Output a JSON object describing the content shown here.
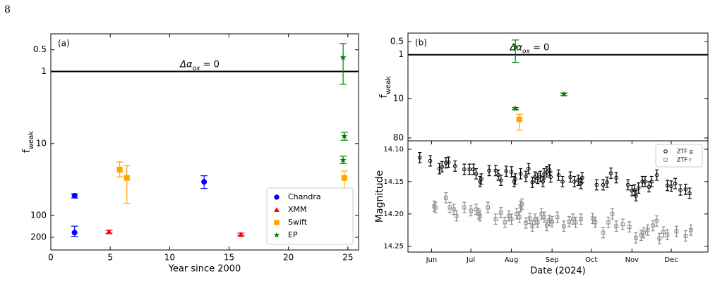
{
  "page_number": "8",
  "chart_data": [
    {
      "type": "scatter",
      "panel_label": "(a)",
      "xlabel": "Year since 2000",
      "ylabel": "f",
      "ylabel_sub": "weak",
      "annotation": "Δα",
      "annotation_sub": "ox",
      "annotation_rest": " = 0",
      "hline": 1,
      "xlim": [
        0,
        25.9
      ],
      "xticks": [
        0,
        5,
        10,
        15,
        20,
        25
      ],
      "ylim": [
        0.3,
        300
      ],
      "yticks": [
        0.5,
        1,
        10,
        100,
        200
      ],
      "yscale": "log",
      "yinvert": true,
      "legend": "lower right",
      "series": [
        {
          "name": "Chandra",
          "color": "#0000ff",
          "marker": "circle",
          "x": [
            2,
            2,
            12.9
          ],
          "values": [
            53,
            172,
            34
          ],
          "lower": [
            50,
            140,
            28
          ],
          "upper": [
            57,
            195,
            42
          ]
        },
        {
          "name": "XMM",
          "color": "#ff0000",
          "marker": "triangle",
          "x": [
            4.9,
            16
          ],
          "values": [
            168,
            183
          ],
          "lower": [
            160,
            175
          ],
          "upper": [
            176,
            190
          ]
        },
        {
          "name": "Swift",
          "color": "#ffa500",
          "marker": "square",
          "x": [
            5.8,
            6.4,
            24.7
          ],
          "values": [
            23,
            30,
            30
          ],
          "lower": [
            18,
            20,
            24
          ],
          "upper": [
            29,
            68,
            53
          ]
        },
        {
          "name": "EP",
          "color": "#008000",
          "marker": "star",
          "x": [
            24.6,
            24.7,
            24.6
          ],
          "values": [
            0.64,
            7.9,
            17
          ],
          "lower": [
            0.41,
            7,
            15
          ],
          "upper": [
            1.5,
            9,
            19
          ]
        }
      ]
    },
    {
      "type": "scatter",
      "panel_label": "(b)",
      "ylabel": "f",
      "ylabel_sub": "weak",
      "annotation": "Δα",
      "annotation_sub": "ox",
      "annotation_rest": " = 0",
      "hline": 1,
      "xlim": [
        "2024-05-14",
        "2024-12-29"
      ],
      "ylim": [
        0.32,
        93
      ],
      "yticks": [
        0.5,
        1,
        10,
        80
      ],
      "yscale": "log",
      "yinvert": true,
      "series": [
        {
          "color": "#008000",
          "marker": "star",
          "x": [
            "2024-08-04",
            "2024-08-04",
            "2024-09-10"
          ],
          "values": [
            0.66,
            17,
            8
          ],
          "lower": [
            0.46,
            16,
            7.5
          ],
          "upper": [
            1.5,
            18,
            8.6
          ]
        },
        {
          "color": "#ffa500",
          "marker": "square",
          "x": [
            "2024-08-07"
          ],
          "values": [
            30
          ],
          "lower": [
            23
          ],
          "upper": [
            53
          ]
        }
      ]
    },
    {
      "type": "scatter",
      "xlabel": "Date (2024)",
      "ylabel": "Magnitude",
      "xlim": [
        "2024-05-14",
        "2024-12-29"
      ],
      "xticks": [
        {
          "value": "2024-06-01",
          "label": "Jun"
        },
        {
          "value": "2024-07-01",
          "label": "Jul"
        },
        {
          "value": "2024-08-01",
          "label": "Aug"
        },
        {
          "value": "2024-09-01",
          "label": "Sep"
        },
        {
          "value": "2024-10-01",
          "label": "Oct"
        },
        {
          "value": "2024-11-01",
          "label": "Nov"
        },
        {
          "value": "2024-12-01",
          "label": "Dec"
        }
      ],
      "ylim": [
        14.087,
        14.259
      ],
      "yticks": [
        {
          "value": 14.1,
          "label": "14.10"
        },
        {
          "value": 14.15,
          "label": "14.15"
        },
        {
          "value": 14.2,
          "label": "14.20"
        },
        {
          "value": 14.25,
          "label": "14.25"
        }
      ],
      "yinvert": true,
      "legend": "upper right",
      "series": [
        {
          "name": "ZTF g",
          "color": "#000000",
          "marker": "circle",
          "filled": false,
          "error": 0.008,
          "x": [
            "2024-05-23",
            "2024-05-31",
            "2024-06-07",
            "2024-06-09",
            "2024-06-12",
            "2024-06-14",
            "2024-06-19",
            "2024-06-26",
            "2024-06-30",
            "2024-07-03",
            "2024-07-05",
            "2024-07-08",
            "2024-07-09",
            "2024-07-15",
            "2024-07-20",
            "2024-07-22",
            "2024-07-24",
            "2024-07-28",
            "2024-08-01",
            "2024-08-03",
            "2024-08-04",
            "2024-08-08",
            "2024-08-12",
            "2024-08-14",
            "2024-08-17",
            "2024-08-19",
            "2024-08-21",
            "2024-08-23",
            "2024-08-25",
            "2024-08-26",
            "2024-08-28",
            "2024-08-30",
            "2024-08-31",
            "2024-09-06",
            "2024-09-09",
            "2024-09-15",
            "2024-09-18",
            "2024-09-21",
            "2024-09-23",
            "2024-09-24",
            "2024-10-05",
            "2024-10-10",
            "2024-10-13",
            "2024-10-16",
            "2024-10-20",
            "2024-10-29",
            "2024-11-01",
            "2024-11-03",
            "2024-11-04",
            "2024-11-06",
            "2024-11-09",
            "2024-11-11",
            "2024-11-14",
            "2024-11-16",
            "2024-11-20",
            "2024-11-28",
            "2024-12-01",
            "2024-12-04",
            "2024-12-08",
            "2024-12-12",
            "2024-12-15"
          ],
          "values": [
            14.113,
            14.118,
            14.13,
            14.127,
            14.121,
            14.12,
            14.126,
            14.131,
            14.131,
            14.131,
            14.138,
            14.15,
            14.146,
            14.133,
            14.133,
            14.14,
            14.148,
            14.134,
            14.135,
            14.15,
            14.146,
            14.138,
            14.142,
            14.13,
            14.151,
            14.143,
            14.145,
            14.142,
            14.15,
            14.138,
            14.135,
            14.132,
            14.143,
            14.14,
            14.15,
            14.143,
            14.15,
            14.148,
            14.153,
            14.144,
            14.155,
            14.155,
            14.151,
            14.137,
            14.144,
            14.155,
            14.164,
            14.163,
            14.172,
            14.16,
            14.15,
            14.15,
            14.158,
            14.15,
            14.14,
            14.156,
            14.157,
            14.153,
            14.163,
            14.162,
            14.168
          ]
        },
        {
          "name": "ZTF r",
          "color": "#8c8c8c",
          "marker": "square",
          "filled": false,
          "error": 0.008,
          "x": [
            "2024-06-03",
            "2024-06-04",
            "2024-06-12",
            "2024-06-15",
            "2024-06-18",
            "2024-06-20",
            "2024-06-26",
            "2024-07-01",
            "2024-07-05",
            "2024-07-07",
            "2024-07-08",
            "2024-07-14",
            "2024-07-20",
            "2024-07-24",
            "2024-07-27",
            "2024-07-30",
            "2024-08-01",
            "2024-08-05",
            "2024-08-07",
            "2024-08-08",
            "2024-08-09",
            "2024-08-12",
            "2024-08-15",
            "2024-08-17",
            "2024-08-19",
            "2024-08-21",
            "2024-08-24",
            "2024-08-26",
            "2024-08-28",
            "2024-08-30",
            "2024-09-01",
            "2024-09-05",
            "2024-09-10",
            "2024-09-14",
            "2024-09-17",
            "2024-09-19",
            "2024-09-23",
            "2024-10-02",
            "2024-10-04",
            "2024-10-10",
            "2024-10-14",
            "2024-10-17",
            "2024-10-20",
            "2024-10-25",
            "2024-10-30",
            "2024-11-04",
            "2024-11-08",
            "2024-11-10",
            "2024-11-13",
            "2024-11-17",
            "2024-11-20",
            "2024-11-22",
            "2024-11-25",
            "2024-11-28",
            "2024-12-05",
            "2024-12-12",
            "2024-12-16"
          ],
          "values": [
            14.188,
            14.19,
            14.175,
            14.19,
            14.193,
            14.203,
            14.19,
            14.195,
            14.193,
            14.2,
            14.203,
            14.19,
            14.208,
            14.198,
            14.213,
            14.203,
            14.208,
            14.2,
            14.205,
            14.188,
            14.185,
            14.214,
            14.207,
            14.219,
            14.208,
            14.213,
            14.2,
            14.205,
            14.218,
            14.21,
            14.212,
            14.205,
            14.219,
            14.212,
            14.208,
            14.213,
            14.208,
            14.207,
            14.213,
            14.229,
            14.213,
            14.2,
            14.219,
            14.216,
            14.22,
            14.237,
            14.233,
            14.229,
            14.225,
            14.218,
            14.211,
            14.238,
            14.228,
            14.232,
            14.227,
            14.234,
            14.225
          ]
        }
      ]
    }
  ]
}
